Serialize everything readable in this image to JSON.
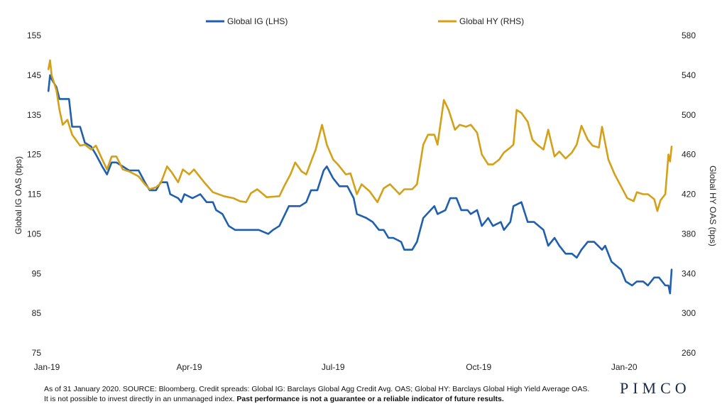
{
  "chart_data": {
    "type": "line",
    "title": "",
    "xlabel": "",
    "ylabel_left": "Global IG OAS (bps)",
    "ylabel_right": "Global HY OAS (bps)",
    "ylim_left": [
      75,
      155
    ],
    "ylim_right": [
      260,
      580
    ],
    "yticks_left": [
      "155",
      "145",
      "135",
      "125",
      "115",
      "105",
      "95",
      "85",
      "75"
    ],
    "yticks_right": [
      "580",
      "540",
      "500",
      "460",
      "420",
      "380",
      "340",
      "300",
      "260"
    ],
    "x_range": [
      "2019-01-01",
      "2020-01-31"
    ],
    "xticks": [
      {
        "date": "2019-01-01",
        "label": "Jan-19"
      },
      {
        "date": "2019-04-01",
        "label": "Apr-19"
      },
      {
        "date": "2019-07-01",
        "label": "Jul-19"
      },
      {
        "date": "2019-10-01",
        "label": "Oct-19"
      },
      {
        "date": "2020-01-01",
        "label": "Jan-20"
      }
    ],
    "grid": false,
    "legend_position": "top",
    "series": [
      {
        "name": "Global IG (LHS)",
        "axis": "left",
        "color": "#1f5fad",
        "points": [
          [
            "2019-01-02",
            141
          ],
          [
            "2019-01-03",
            145
          ],
          [
            "2019-01-04",
            144
          ],
          [
            "2019-01-07",
            142
          ],
          [
            "2019-01-09",
            139
          ],
          [
            "2019-01-11",
            139
          ],
          [
            "2019-01-15",
            139
          ],
          [
            "2019-01-17",
            132
          ],
          [
            "2019-01-22",
            132
          ],
          [
            "2019-01-25",
            128
          ],
          [
            "2019-01-29",
            127
          ],
          [
            "2019-02-01",
            125
          ],
          [
            "2019-02-05",
            122
          ],
          [
            "2019-02-08",
            120
          ],
          [
            "2019-02-11",
            123
          ],
          [
            "2019-02-14",
            123
          ],
          [
            "2019-02-18",
            122
          ],
          [
            "2019-02-22",
            121
          ],
          [
            "2019-02-28",
            121
          ],
          [
            "2019-03-04",
            118
          ],
          [
            "2019-03-07",
            116
          ],
          [
            "2019-03-11",
            116
          ],
          [
            "2019-03-14",
            118
          ],
          [
            "2019-03-18",
            118
          ],
          [
            "2019-03-20",
            115
          ],
          [
            "2019-03-25",
            114
          ],
          [
            "2019-03-27",
            113
          ],
          [
            "2019-03-29",
            115
          ],
          [
            "2019-04-03",
            114
          ],
          [
            "2019-04-08",
            115
          ],
          [
            "2019-04-12",
            113
          ],
          [
            "2019-04-16",
            113
          ],
          [
            "2019-04-18",
            111
          ],
          [
            "2019-04-22",
            110
          ],
          [
            "2019-04-26",
            107
          ],
          [
            "2019-04-30",
            106
          ],
          [
            "2019-05-06",
            106
          ],
          [
            "2019-05-15",
            106
          ],
          [
            "2019-05-21",
            105
          ],
          [
            "2019-05-24",
            106
          ],
          [
            "2019-05-28",
            107
          ],
          [
            "2019-06-03",
            112
          ],
          [
            "2019-06-10",
            112
          ],
          [
            "2019-06-14",
            113
          ],
          [
            "2019-06-17",
            116
          ],
          [
            "2019-06-21",
            116
          ],
          [
            "2019-06-25",
            121
          ],
          [
            "2019-06-27",
            122
          ],
          [
            "2019-07-01",
            119
          ],
          [
            "2019-07-05",
            117
          ],
          [
            "2019-07-10",
            117
          ],
          [
            "2019-07-14",
            114
          ],
          [
            "2019-07-16",
            110
          ],
          [
            "2019-07-22",
            109
          ],
          [
            "2019-07-26",
            108
          ],
          [
            "2019-07-30",
            106
          ],
          [
            "2019-08-02",
            106
          ],
          [
            "2019-08-05",
            104
          ],
          [
            "2019-08-08",
            104
          ],
          [
            "2019-08-13",
            103
          ],
          [
            "2019-08-15",
            101
          ],
          [
            "2019-08-20",
            101
          ],
          [
            "2019-08-23",
            103
          ],
          [
            "2019-08-27",
            109
          ],
          [
            "2019-09-03",
            112
          ],
          [
            "2019-09-05",
            110
          ],
          [
            "2019-09-10",
            111
          ],
          [
            "2019-09-13",
            114
          ],
          [
            "2019-09-17",
            114
          ],
          [
            "2019-09-20",
            111
          ],
          [
            "2019-09-24",
            111
          ],
          [
            "2019-09-26",
            110
          ],
          [
            "2019-09-30",
            111
          ],
          [
            "2019-10-03",
            107
          ],
          [
            "2019-10-07",
            109
          ],
          [
            "2019-10-10",
            107
          ],
          [
            "2019-10-15",
            108
          ],
          [
            "2019-10-17",
            106
          ],
          [
            "2019-10-21",
            108
          ],
          [
            "2019-10-23",
            112
          ],
          [
            "2019-10-28",
            113
          ],
          [
            "2019-11-01",
            108
          ],
          [
            "2019-11-05",
            108
          ],
          [
            "2019-11-11",
            106
          ],
          [
            "2019-11-14",
            102
          ],
          [
            "2019-11-18",
            104
          ],
          [
            "2019-11-21",
            102
          ],
          [
            "2019-11-25",
            100
          ],
          [
            "2019-11-29",
            100
          ],
          [
            "2019-12-02",
            99
          ],
          [
            "2019-12-05",
            101
          ],
          [
            "2019-12-09",
            103
          ],
          [
            "2019-12-13",
            103
          ],
          [
            "2019-12-18",
            101
          ],
          [
            "2019-12-20",
            102
          ],
          [
            "2019-12-24",
            98
          ],
          [
            "2019-12-30",
            96
          ],
          [
            "2020-01-02",
            93
          ],
          [
            "2020-01-06",
            92
          ],
          [
            "2020-01-09",
            93
          ],
          [
            "2020-01-13",
            93
          ],
          [
            "2020-01-16",
            92
          ],
          [
            "2020-01-20",
            94
          ],
          [
            "2020-01-23",
            94
          ],
          [
            "2020-01-27",
            92
          ],
          [
            "2020-01-29",
            92
          ],
          [
            "2020-01-30",
            90
          ],
          [
            "2020-01-31",
            96
          ]
        ]
      },
      {
        "name": "Global HY (RHS)",
        "axis": "right",
        "color": "#d4a017",
        "points": [
          [
            "2019-01-02",
            546
          ],
          [
            "2019-01-03",
            555
          ],
          [
            "2019-01-04",
            540
          ],
          [
            "2019-01-07",
            525
          ],
          [
            "2019-01-09",
            505
          ],
          [
            "2019-01-11",
            490
          ],
          [
            "2019-01-14",
            495
          ],
          [
            "2019-01-17",
            480
          ],
          [
            "2019-01-22",
            469
          ],
          [
            "2019-01-25",
            470
          ],
          [
            "2019-01-29",
            465
          ],
          [
            "2019-02-01",
            469
          ],
          [
            "2019-02-05",
            455
          ],
          [
            "2019-02-08",
            445
          ],
          [
            "2019-02-11",
            458
          ],
          [
            "2019-02-14",
            458
          ],
          [
            "2019-02-18",
            445
          ],
          [
            "2019-02-22",
            443
          ],
          [
            "2019-02-28",
            438
          ],
          [
            "2019-03-04",
            430
          ],
          [
            "2019-03-07",
            425
          ],
          [
            "2019-03-11",
            427
          ],
          [
            "2019-03-14",
            431
          ],
          [
            "2019-03-18",
            448
          ],
          [
            "2019-03-21",
            442
          ],
          [
            "2019-03-25",
            432
          ],
          [
            "2019-03-28",
            445
          ],
          [
            "2019-04-01",
            440
          ],
          [
            "2019-04-04",
            445
          ],
          [
            "2019-04-08",
            437
          ],
          [
            "2019-04-11",
            431
          ],
          [
            "2019-04-16",
            422
          ],
          [
            "2019-04-23",
            418
          ],
          [
            "2019-04-29",
            416
          ],
          [
            "2019-05-03",
            413
          ],
          [
            "2019-05-07",
            412
          ],
          [
            "2019-05-10",
            421
          ],
          [
            "2019-05-14",
            425
          ],
          [
            "2019-05-20",
            417
          ],
          [
            "2019-05-28",
            418
          ],
          [
            "2019-05-31",
            428
          ],
          [
            "2019-06-04",
            440
          ],
          [
            "2019-06-07",
            452
          ],
          [
            "2019-06-11",
            443
          ],
          [
            "2019-06-14",
            440
          ],
          [
            "2019-06-18",
            457
          ],
          [
            "2019-06-20",
            465
          ],
          [
            "2019-06-24",
            490
          ],
          [
            "2019-06-27",
            470
          ],
          [
            "2019-07-01",
            455
          ],
          [
            "2019-07-04",
            450
          ],
          [
            "2019-07-09",
            440
          ],
          [
            "2019-07-12",
            441
          ],
          [
            "2019-07-16",
            420
          ],
          [
            "2019-07-19",
            430
          ],
          [
            "2019-07-24",
            423
          ],
          [
            "2019-07-29",
            412
          ],
          [
            "2019-08-02",
            426
          ],
          [
            "2019-08-06",
            430
          ],
          [
            "2019-08-12",
            420
          ],
          [
            "2019-08-15",
            425
          ],
          [
            "2019-08-20",
            425
          ],
          [
            "2019-08-23",
            430
          ],
          [
            "2019-08-27",
            470
          ],
          [
            "2019-08-30",
            480
          ],
          [
            "2019-09-03",
            480
          ],
          [
            "2019-09-05",
            470
          ],
          [
            "2019-09-09",
            515
          ],
          [
            "2019-09-12",
            505
          ],
          [
            "2019-09-16",
            485
          ],
          [
            "2019-09-19",
            490
          ],
          [
            "2019-09-23",
            488
          ],
          [
            "2019-09-26",
            490
          ],
          [
            "2019-09-30",
            482
          ],
          [
            "2019-10-03",
            460
          ],
          [
            "2019-10-07",
            450
          ],
          [
            "2019-10-10",
            450
          ],
          [
            "2019-10-14",
            455
          ],
          [
            "2019-10-17",
            462
          ],
          [
            "2019-10-21",
            467
          ],
          [
            "2019-10-23",
            470
          ],
          [
            "2019-10-25",
            505
          ],
          [
            "2019-10-28",
            502
          ],
          [
            "2019-11-01",
            493
          ],
          [
            "2019-11-04",
            475
          ],
          [
            "2019-11-07",
            470
          ],
          [
            "2019-11-11",
            465
          ],
          [
            "2019-11-14",
            485
          ],
          [
            "2019-11-18",
            458
          ],
          [
            "2019-11-21",
            463
          ],
          [
            "2019-11-25",
            456
          ],
          [
            "2019-11-29",
            462
          ],
          [
            "2019-12-02",
            470
          ],
          [
            "2019-12-05",
            489
          ],
          [
            "2019-12-09",
            475
          ],
          [
            "2019-12-12",
            469
          ],
          [
            "2019-12-16",
            467
          ],
          [
            "2019-12-18",
            488
          ],
          [
            "2019-12-22",
            455
          ],
          [
            "2019-12-26",
            440
          ],
          [
            "2019-12-30",
            428
          ],
          [
            "2020-01-03",
            416
          ],
          [
            "2020-01-07",
            413
          ],
          [
            "2020-01-09",
            422
          ],
          [
            "2020-01-13",
            420
          ],
          [
            "2020-01-16",
            420
          ],
          [
            "2020-01-20",
            415
          ],
          [
            "2020-01-22",
            403
          ],
          [
            "2020-01-24",
            414
          ],
          [
            "2020-01-27",
            420
          ],
          [
            "2020-01-28",
            440
          ],
          [
            "2020-01-29",
            460
          ],
          [
            "2020-01-30",
            453
          ],
          [
            "2020-01-31",
            468
          ]
        ]
      }
    ]
  },
  "footnote": {
    "line1": "As of 31 January 2020. SOURCE: Bloomberg.  Credit spreads: Global IG: Barclays Global Agg Credit Avg. OAS; Global HY: Barclays Global High Yield Average OAS.",
    "line2_normal": "It is not possible to invest directly in an unmanaged index. ",
    "line2_bold": "Past performance is not a guarantee or a reliable indicator of future results."
  },
  "logo": "PIMCO"
}
